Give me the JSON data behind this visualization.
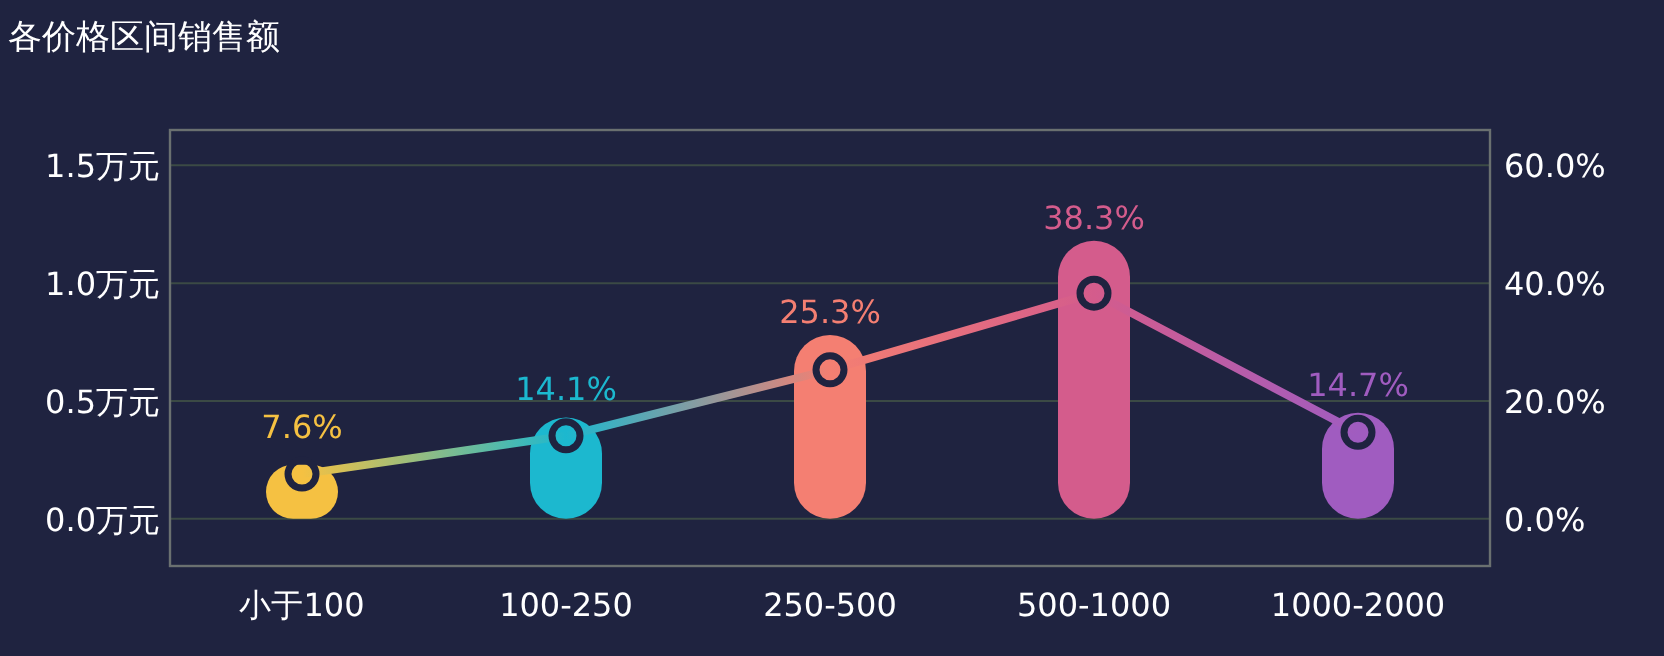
{
  "chart_data": {
    "type": "bar",
    "title": "各价格区间销售额",
    "categories": [
      "小于100",
      "100-250",
      "250-500",
      "500-1000",
      "1000-2000"
    ],
    "series": [
      {
        "colors": [
          "#f5c142",
          "#1cb8cf",
          "#f47f72",
          "#d45c8c",
          "#a05cc0"
        ],
        "values": [
          0.23,
          0.43,
          0.78,
          1.18,
          0.45
        ]
      },
      {
        "type": "line",
        "axis": "y2",
        "colors": [
          "#f5c142",
          "#1cb8cf",
          "#f47f72",
          "#d45c8c",
          "#a05cc0"
        ],
        "values": [
          7.6,
          14.1,
          25.3,
          38.3,
          14.7
        ],
        "value_labels": [
          "7.6%",
          "14.1%",
          "25.3%",
          "38.3%",
          "14.7%"
        ],
        "marker": "circle"
      }
    ],
    "ylim": [
      -0.2,
      1.65
    ],
    "yticks": [
      {
        "value": 0,
        "label": "0.0万元"
      },
      {
        "value": 0.5,
        "label": "0.5万元"
      },
      {
        "value": 1.0,
        "label": "1.0万元"
      },
      {
        "value": 1.5,
        "label": "1.5万元"
      }
    ],
    "y2lim": [
      -8,
      66
    ],
    "y2ticks": [
      {
        "value": 0,
        "label": "0.0%"
      },
      {
        "value": 20,
        "label": "20.0%"
      },
      {
        "value": 40,
        "label": "40.0%"
      },
      {
        "value": 60,
        "label": "60.0%"
      }
    ],
    "grid": "y"
  }
}
